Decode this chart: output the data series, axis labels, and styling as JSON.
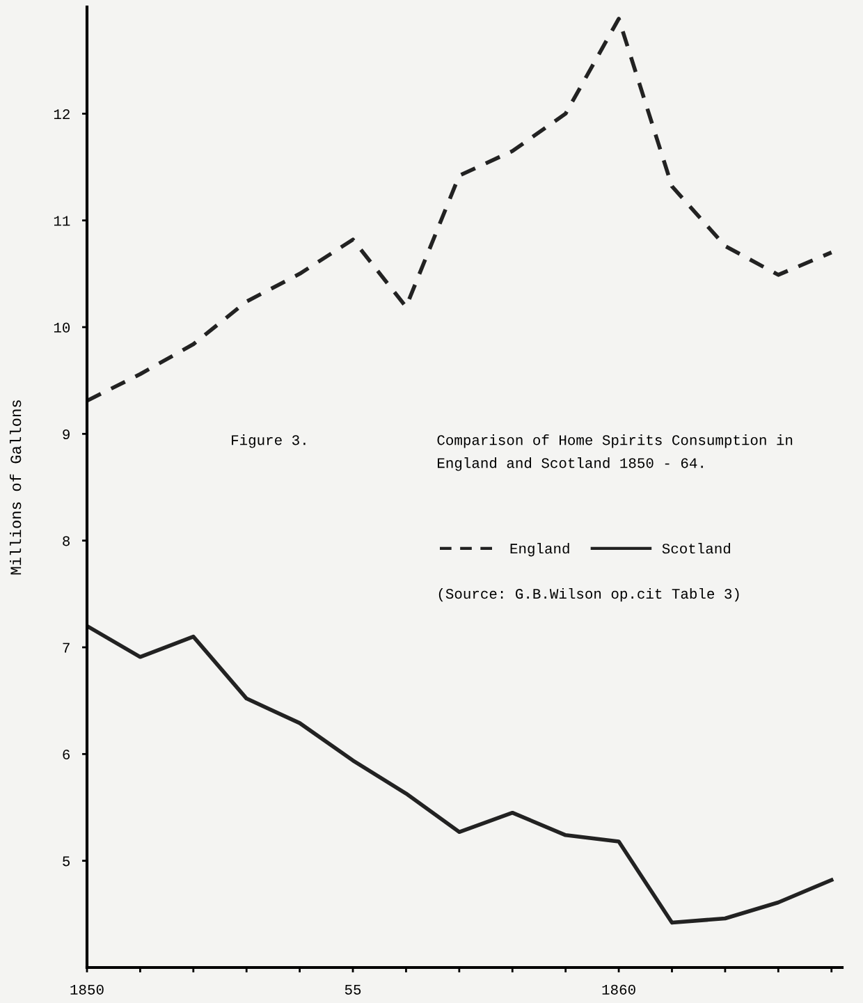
{
  "chart_data": {
    "type": "line",
    "title": "Comparison of Home Spirits Consumption in England and Scotland 1850 - 64.",
    "ylabel": "Millions of Gallons",
    "x": [
      1850,
      1851,
      1852,
      1853,
      1854,
      1855,
      1856,
      1857,
      1858,
      1859,
      1860,
      1861,
      1862,
      1863,
      1864
    ],
    "series": [
      {
        "name": "England",
        "color": "#222222",
        "line_style": "dashed",
        "values": [
          9.31,
          9.56,
          9.84,
          10.24,
          10.5,
          10.82,
          10.19,
          11.42,
          11.65,
          12.0,
          12.89,
          11.32,
          10.76,
          10.49,
          10.7
        ]
      },
      {
        "name": "Scotland",
        "color": "#222222",
        "line_style": "solid",
        "values": [
          7.2,
          6.91,
          7.1,
          6.52,
          6.29,
          5.94,
          5.63,
          5.27,
          5.45,
          5.24,
          5.18,
          4.42,
          4.46,
          4.61,
          4.82
        ]
      }
    ],
    "xlim": [
      1850,
      1864.2
    ],
    "ylim": [
      4,
      13
    ],
    "xticks": [
      {
        "value": 1850,
        "label": "1850"
      },
      {
        "value": 1851,
        "label": null
      },
      {
        "value": 1852,
        "label": null
      },
      {
        "value": 1853,
        "label": null
      },
      {
        "value": 1854,
        "label": null
      },
      {
        "value": 1855,
        "label": "55"
      },
      {
        "value": 1856,
        "label": null
      },
      {
        "value": 1857,
        "label": null
      },
      {
        "value": 1858,
        "label": null
      },
      {
        "value": 1859,
        "label": null
      },
      {
        "value": 1860,
        "label": "1860"
      },
      {
        "value": 1861,
        "label": null
      },
      {
        "value": 1862,
        "label": null
      },
      {
        "value": 1863,
        "label": null
      },
      {
        "value": 1864,
        "label": null
      }
    ],
    "yticks": [
      5,
      6,
      7,
      8,
      9,
      10,
      11,
      12
    ],
    "annotations": [
      "Figure 3.",
      "(Source: G.B.Wilson op.cit Table 3)"
    ],
    "legend": "right",
    "grid": false,
    "marker": "none"
  }
}
